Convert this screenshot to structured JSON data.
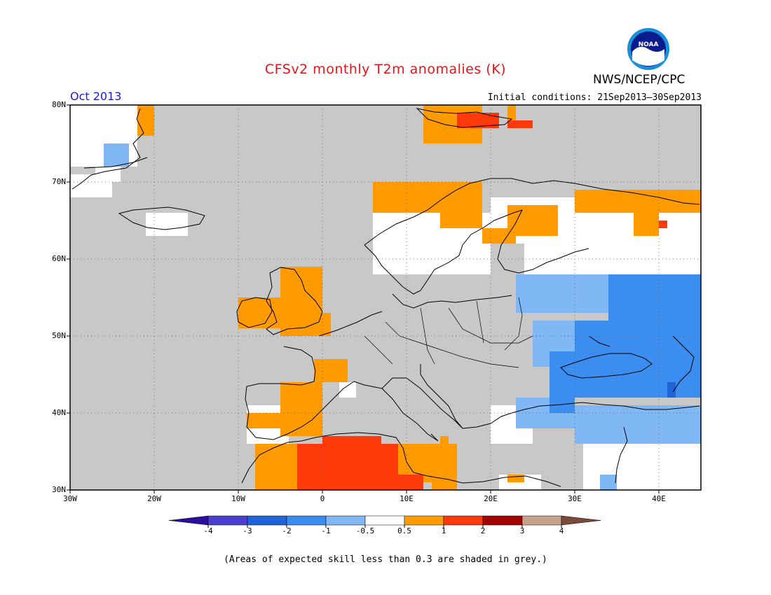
{
  "title": "CFSv2 monthly T2m anomalies (K)",
  "agency": "NWS/NCEP/CPC",
  "logo_text": "NOAA",
  "valid_month": "Oct 2013",
  "initial_conditions": "Initial conditions: 21Sep2013–30Sep2013",
  "footnote": "(Areas of expected skill less than 0.3 are shaded in grey.)",
  "map": {
    "lon_range": [
      -30,
      45
    ],
    "lat_range": [
      30,
      80
    ],
    "lat_labels": [
      "80N",
      "70N",
      "60N",
      "50N",
      "40N",
      "30N"
    ],
    "lon_labels": [
      "30W",
      "20W",
      "10W",
      "0",
      "10E",
      "20E",
      "30E",
      "40E"
    ],
    "grid": "dotted",
    "no_skill_color": "#c8c8c8"
  },
  "colorbar": {
    "labels": [
      "-4",
      "-3",
      "-2",
      "-1",
      "-0.5",
      "0.5",
      "1",
      "2",
      "3",
      "4"
    ],
    "colors": [
      "#2a0f9e",
      "#4b3fd1",
      "#1f63d8",
      "#3b8ef0",
      "#7fb8f5",
      "#ffffff",
      "#ff9a00",
      "#ff3a0a",
      "#a50000",
      "#c9a08e",
      "#7a4a3a"
    ],
    "color_warm": "#ff9a00",
    "color_hot": "#ff3a0a",
    "color_cold": "#3b8ef0",
    "color_cool": "#7fb8f5",
    "color_vcold": "#1f63d8"
  }
}
